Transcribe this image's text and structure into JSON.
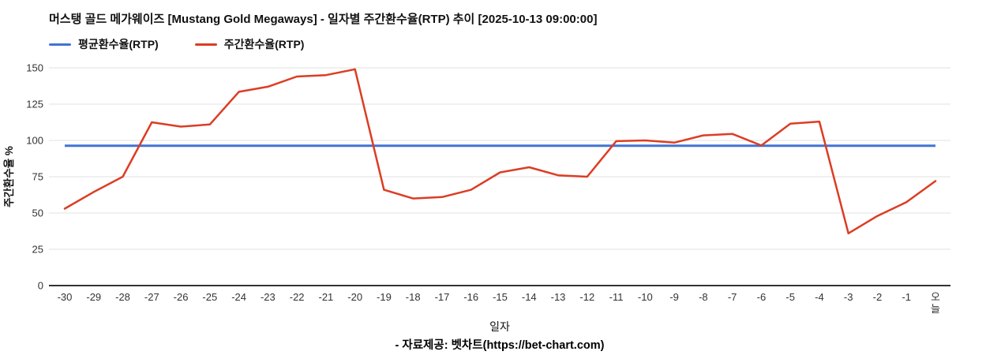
{
  "chart_data": {
    "type": "line",
    "title": "머스탱 골드 메가웨이즈 [Mustang Gold Megaways] - 일자별 주간환수율(RTP) 추이 [2025-10-13 09:00:00]",
    "xlabel": "일자",
    "ylabel": "주간환수율 %",
    "ylim": [
      0,
      150
    ],
    "yticks": [
      0,
      25,
      50,
      75,
      100,
      125,
      150
    ],
    "grid": true,
    "legend_position": "top-left",
    "categories": [
      "-30",
      "-29",
      "-28",
      "-27",
      "-26",
      "-25",
      "-24",
      "-23",
      "-22",
      "-21",
      "-20",
      "-19",
      "-18",
      "-17",
      "-16",
      "-15",
      "-14",
      "-13",
      "-12",
      "-11",
      "-10",
      "-9",
      "-8",
      "-7",
      "-6",
      "-5",
      "-4",
      "-3",
      "-2",
      "-1",
      "오늘"
    ],
    "series": [
      {
        "name": "평균환수율(RTP)",
        "color": "#4273d4",
        "type": "constant",
        "value": 96.3
      },
      {
        "name": "주간환수율(RTP)",
        "color": "#dc3d23",
        "type": "line",
        "values": [
          53,
          64.5,
          75,
          112.5,
          109.5,
          111,
          133.5,
          137,
          144,
          145,
          149,
          66,
          60,
          61,
          66,
          78,
          81.5,
          76,
          75,
          99.5,
          100,
          98.5,
          103.5,
          104.5,
          96.5,
          111.5,
          113,
          36,
          48,
          57.5,
          72
        ]
      }
    ],
    "grid_color": "#e2e2e2",
    "axis_color": "#333333",
    "tick_label_color": "#333333"
  },
  "footer": {
    "text": "- 자료제공: 벳차트(https://bet-chart.com)"
  }
}
